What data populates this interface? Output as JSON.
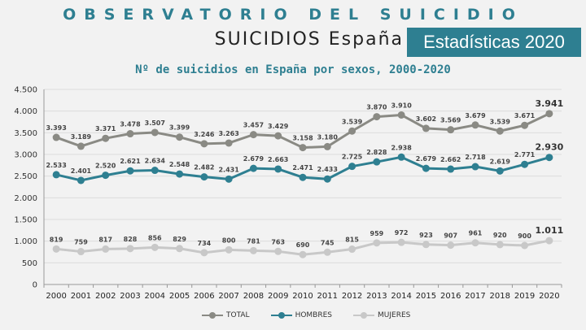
{
  "header": {
    "title": "OBSERVATORIO DEL SUICIDIO",
    "subtitle": "SUICIDIOS España",
    "badge": "Estadísticas 2020"
  },
  "colors": {
    "accent": "#2e7f91",
    "total": "#8a8a84",
    "hombres": "#2e7f91",
    "mujeres": "#c8c8c8"
  },
  "chart_data": {
    "type": "line",
    "title": "Nº de suicidios en España por sexos, 2000-2020",
    "x": [
      "2000",
      "2001",
      "2002",
      "2003",
      "2004",
      "2005",
      "2006",
      "2007",
      "2008",
      "2009",
      "2010",
      "2011",
      "2012",
      "2013",
      "2014",
      "2015",
      "2016",
      "2017",
      "2018",
      "2019",
      "2020"
    ],
    "ylim": [
      0,
      4500
    ],
    "yticks": [
      0,
      500,
      1000,
      1500,
      2000,
      2500,
      3000,
      3500,
      4000,
      4500
    ],
    "ytick_labels": [
      "0",
      "500",
      "1.000",
      "1.500",
      "2.000",
      "2.500",
      "3.000",
      "3.500",
      "4.000",
      "4.500"
    ],
    "grid": true,
    "legend_position": "bottom",
    "series": [
      {
        "name": "TOTAL",
        "values": [
          3393,
          3189,
          3371,
          3478,
          3507,
          3399,
          3246,
          3263,
          3457,
          3429,
          3158,
          3180,
          3539,
          3870,
          3910,
          3602,
          3569,
          3679,
          3539,
          3671,
          3941
        ],
        "labels": [
          "3.393",
          "3.189",
          "3.371",
          "3.478",
          "3.507",
          "3.399",
          "3.246",
          "3.263",
          "3.457",
          "3.429",
          "3.158",
          "3.180",
          "3.539",
          "3.870",
          "3.910",
          "3.602",
          "3.569",
          "3.679",
          "3.539",
          "3.671",
          "3.941"
        ]
      },
      {
        "name": "HOMBRES",
        "values": [
          2533,
          2401,
          2520,
          2621,
          2634,
          2548,
          2482,
          2431,
          2679,
          2663,
          2471,
          2433,
          2725,
          2828,
          2938,
          2679,
          2662,
          2718,
          2619,
          2771,
          2930
        ],
        "labels": [
          "2.533",
          "2.401",
          "2.520",
          "2.621",
          "2.634",
          "2.548",
          "2.482",
          "2.431",
          "2.679",
          "2.663",
          "2.471",
          "2.433",
          "2.725",
          "2.828",
          "2.938",
          "2.679",
          "2.662",
          "2.718",
          "2.619",
          "2.771",
          "2.930"
        ]
      },
      {
        "name": "MUJERES",
        "values": [
          819,
          759,
          817,
          828,
          856,
          829,
          734,
          800,
          781,
          763,
          690,
          745,
          815,
          959,
          972,
          923,
          907,
          961,
          920,
          900,
          1011
        ],
        "labels": [
          "819",
          "759",
          "817",
          "828",
          "856",
          "829",
          "734",
          "800",
          "781",
          "763",
          "690",
          "745",
          "815",
          "959",
          "972",
          "923",
          "907",
          "961",
          "920",
          "900",
          "1.011"
        ]
      }
    ]
  }
}
